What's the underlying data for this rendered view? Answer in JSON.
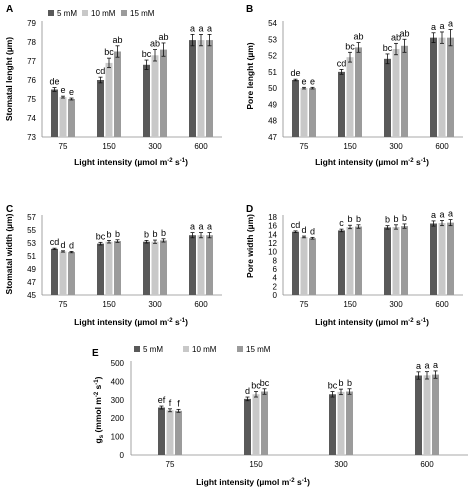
{
  "colors": {
    "s5": "#595959",
    "s10": "#c8c8c8",
    "s15": "#9b9b9b",
    "err": "#111111",
    "axis": "#8c8c8c"
  },
  "chart_data": [
    {
      "panel_label": "A",
      "type": "bar",
      "ylabel": "Stomatal lenght (µm)",
      "xlabel_main": "Light intensity (µmol m",
      "xlabel_sup1": "-2",
      "xlabel_mid": " s",
      "xlabel_sup2": "-1",
      "xlabel_end": ")",
      "categories": [
        "75",
        "150",
        "300",
        "600"
      ],
      "ylim": [
        73,
        79
      ],
      "yticks": [
        "73",
        "74",
        "75",
        "76",
        "77",
        "78",
        "79"
      ],
      "legend": [
        "5 mM",
        "10 mM",
        "15 mM"
      ],
      "series": [
        {
          "name": "5 mM",
          "values": [
            75.5,
            76.0,
            76.8,
            78.1
          ],
          "errors": [
            0.1,
            0.15,
            0.25,
            0.3
          ],
          "letters": [
            "de",
            "cd",
            "bc",
            "a"
          ]
        },
        {
          "name": "10 mM",
          "values": [
            75.1,
            76.9,
            77.3,
            78.1
          ],
          "errors": [
            0.05,
            0.25,
            0.3,
            0.3
          ],
          "letters": [
            "e",
            "bc",
            "ab",
            "a"
          ]
        },
        {
          "name": "15 mM",
          "values": [
            75.0,
            77.5,
            77.6,
            78.1
          ],
          "errors": [
            0.05,
            0.3,
            0.35,
            0.3
          ],
          "letters": [
            "e",
            "ab",
            "ab",
            "a"
          ]
        }
      ]
    },
    {
      "panel_label": "B",
      "type": "bar",
      "ylabel": "Pore lenght (µm)",
      "xlabel_main": "Light intensity (µmol m",
      "xlabel_sup1": "-2",
      "xlabel_mid": " s",
      "xlabel_sup2": "-1",
      "xlabel_end": ")",
      "categories": [
        "75",
        "150",
        "300",
        "600"
      ],
      "ylim": [
        47,
        54
      ],
      "yticks": [
        "47",
        "48",
        "49",
        "50",
        "51",
        "52",
        "53",
        "54"
      ],
      "series": [
        {
          "name": "5 mM",
          "values": [
            50.5,
            51.0,
            51.8,
            53.1
          ],
          "errors": [
            0.05,
            0.15,
            0.3,
            0.3
          ],
          "letters": [
            "de",
            "cd",
            "bc",
            "a"
          ]
        },
        {
          "name": "10 mM",
          "values": [
            50.0,
            51.9,
            52.4,
            53.1
          ],
          "errors": [
            0.05,
            0.3,
            0.35,
            0.35
          ],
          "letters": [
            "e",
            "bc",
            "ab",
            "a"
          ]
        },
        {
          "name": "15 mM",
          "values": [
            50.0,
            52.5,
            52.6,
            53.1
          ],
          "errors": [
            0.05,
            0.3,
            0.4,
            0.5
          ],
          "letters": [
            "e",
            "ab",
            "ab",
            "a"
          ]
        }
      ]
    },
    {
      "panel_label": "C",
      "type": "bar",
      "ylabel": "Stomatal width (µm)",
      "xlabel_main": "Light intensity (µmol m",
      "xlabel_sup1": "-2",
      "xlabel_mid": " s",
      "xlabel_sup2": "-1",
      "xlabel_end": ")",
      "categories": [
        "75",
        "150",
        "300",
        "600"
      ],
      "ylim": [
        45,
        57
      ],
      "yticks": [
        "45",
        "47",
        "49",
        "51",
        "53",
        "55",
        "57"
      ],
      "series": [
        {
          "name": "5 mM",
          "values": [
            52.1,
            52.9,
            53.2,
            54.2
          ],
          "errors": [
            0.1,
            0.2,
            0.2,
            0.4
          ],
          "letters": [
            "cd",
            "bc",
            "b",
            "a"
          ]
        },
        {
          "name": "10 mM",
          "values": [
            51.7,
            53.2,
            53.2,
            54.2
          ],
          "errors": [
            0.1,
            0.2,
            0.25,
            0.4
          ],
          "letters": [
            "d",
            "b",
            "b",
            "a"
          ]
        },
        {
          "name": "15 mM",
          "values": [
            51.6,
            53.3,
            53.4,
            54.2
          ],
          "errors": [
            0.1,
            0.2,
            0.25,
            0.4
          ],
          "letters": [
            "d",
            "b",
            "b",
            "a"
          ]
        }
      ]
    },
    {
      "panel_label": "D",
      "type": "bar",
      "ylabel": "Pore width (µm)",
      "xlabel_main": "Light intensity (µmol m",
      "xlabel_sup1": "-2",
      "xlabel_mid": " s",
      "xlabel_sup2": "-1",
      "xlabel_end": ")",
      "categories": [
        "75",
        "150",
        "300",
        "600"
      ],
      "ylim": [
        0,
        18
      ],
      "yticks": [
        "0",
        "2",
        "4",
        "6",
        "8",
        "10",
        "12",
        "14",
        "16",
        "18"
      ],
      "series": [
        {
          "name": "5 mM",
          "values": [
            14.6,
            14.9,
            15.6,
            16.5
          ],
          "errors": [
            0.2,
            0.3,
            0.4,
            0.6
          ],
          "letters": [
            "cd",
            "c",
            "b",
            "a"
          ]
        },
        {
          "name": "10 mM",
          "values": [
            13.4,
            15.7,
            15.7,
            16.6
          ],
          "errors": [
            0.2,
            0.4,
            0.5,
            0.6
          ],
          "letters": [
            "d",
            "b",
            "b",
            "a"
          ]
        },
        {
          "name": "15 mM",
          "values": [
            13.1,
            15.8,
            15.9,
            16.7
          ],
          "errors": [
            0.2,
            0.4,
            0.5,
            0.7
          ],
          "letters": [
            "d",
            "b",
            "b",
            "a"
          ]
        }
      ]
    },
    {
      "panel_label": "E",
      "type": "bar",
      "ylabel_main": "g",
      "ylabel_sub": "s",
      "ylabel_rest": " (mmol m",
      "ylabel_sup1": "-2",
      "ylabel_mid": " s",
      "ylabel_sup2": "-1",
      "ylabel_end": ")",
      "xlabel_main": "Light intensity (µmol m",
      "xlabel_sup1": "-2",
      "xlabel_mid": " s",
      "xlabel_sup2": "-1",
      "xlabel_end": ")",
      "categories": [
        "75",
        "150",
        "300",
        "600"
      ],
      "ylim": [
        0,
        500
      ],
      "yticks": [
        "0",
        "100",
        "200",
        "300",
        "400",
        "500"
      ],
      "legend": [
        "5 mM",
        "10 mM",
        "15 mM"
      ],
      "series": [
        {
          "name": "5 mM",
          "values": [
            258,
            305,
            330,
            432
          ],
          "errors": [
            8,
            10,
            15,
            20
          ],
          "letters": [
            "ef",
            "d",
            "bc",
            "a"
          ]
        },
        {
          "name": "10 mM",
          "values": [
            243,
            330,
            343,
            433
          ],
          "errors": [
            8,
            15,
            15,
            20
          ],
          "letters": [
            "f",
            "bc",
            "b",
            "a"
          ]
        },
        {
          "name": "15 mM",
          "values": [
            240,
            345,
            345,
            437
          ],
          "errors": [
            8,
            15,
            15,
            20
          ],
          "letters": [
            "f",
            "bc",
            "b",
            "a"
          ]
        }
      ]
    }
  ]
}
